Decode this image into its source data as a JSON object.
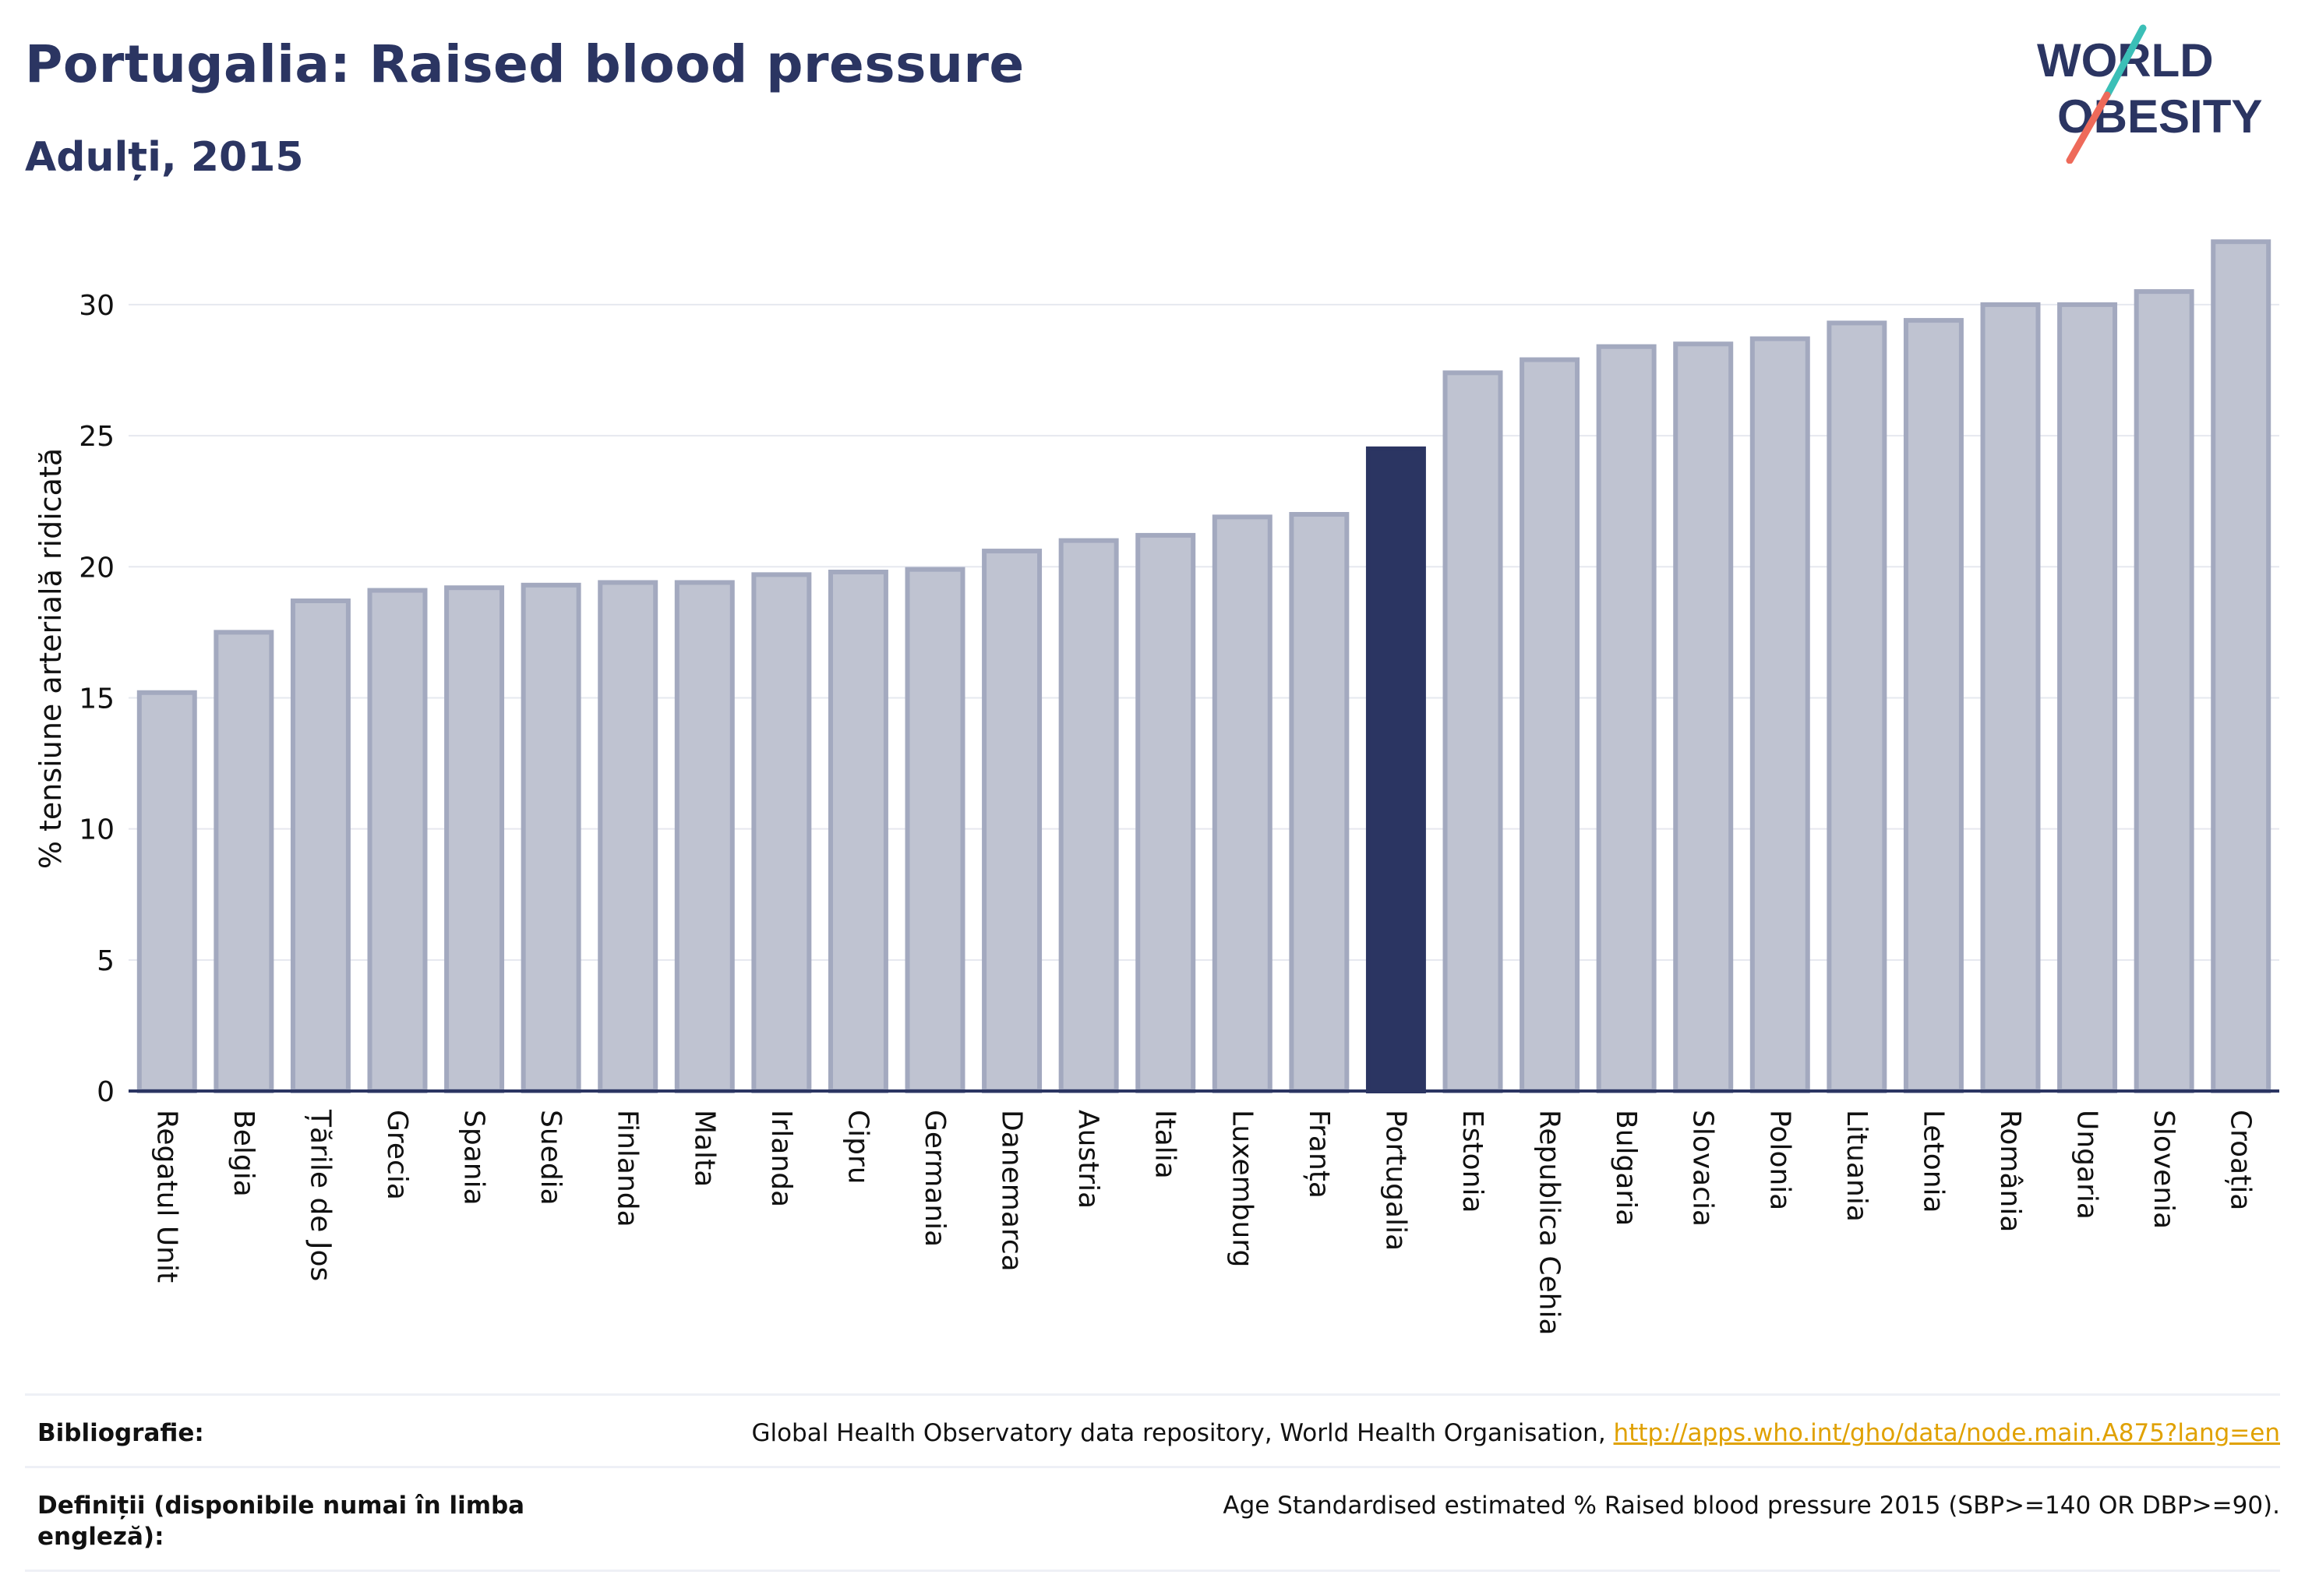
{
  "header": {
    "title": "Portugalia: Raised blood pressure",
    "subtitle": "Adulți, 2015"
  },
  "logo": {
    "line1": "WORLD",
    "line2": "OBESITY",
    "colors": {
      "text": "#2b3562",
      "slash_teal": "#3bbfb7",
      "slash_coral": "#ee6a5a"
    }
  },
  "colors": {
    "bar_fill": "#bfc3d1",
    "bar_stroke": "#a3a9bf",
    "highlight": "#2b3562",
    "grid": "#e6e8ef",
    "axis": "#2b3562"
  },
  "chart_data": {
    "type": "bar",
    "title": "Portugalia: Raised blood pressure",
    "subtitle": "Adulți, 2015",
    "xlabel": "",
    "ylabel": "% tensiune arterială ridicată",
    "ylim": [
      0,
      33
    ],
    "yticks": [
      0,
      5,
      10,
      15,
      20,
      25,
      30
    ],
    "grid": true,
    "highlight_category": "Portugalia",
    "categories": [
      "Regatul Unit",
      "Belgia",
      "Țările de Jos",
      "Grecia",
      "Spania",
      "Suedia",
      "Finlanda",
      "Malta",
      "Irlanda",
      "Cipru",
      "Germania",
      "Danemarca",
      "Austria",
      "Italia",
      "Luxemburg",
      "Franța",
      "Portugalia",
      "Estonia",
      "Republica Cehia",
      "Bulgaria",
      "Slovacia",
      "Polonia",
      "Lituania",
      "Letonia",
      "România",
      "Ungaria",
      "Slovenia",
      "Croația"
    ],
    "values": [
      15.2,
      17.5,
      18.7,
      19.1,
      19.2,
      19.3,
      19.4,
      19.4,
      19.7,
      19.8,
      19.9,
      20.6,
      21.0,
      21.2,
      21.9,
      22.0,
      24.5,
      27.4,
      27.9,
      28.4,
      28.5,
      28.7,
      29.3,
      29.4,
      30.0,
      30.0,
      30.5,
      32.4
    ]
  },
  "references": {
    "bibliography_label": "Bibliografie:",
    "bibliography_text": "Global Health Observatory data repository, World Health Organisation,",
    "bibliography_link": "http://apps.who.int/gho/data/node.main.A875?lang=en",
    "definitions_label": "Definiții (disponibile numai în limba engleză):",
    "definitions_text": "Age Standardised estimated % Raised blood pressure 2015 (SBP>=140 OR DBP>=90)."
  }
}
